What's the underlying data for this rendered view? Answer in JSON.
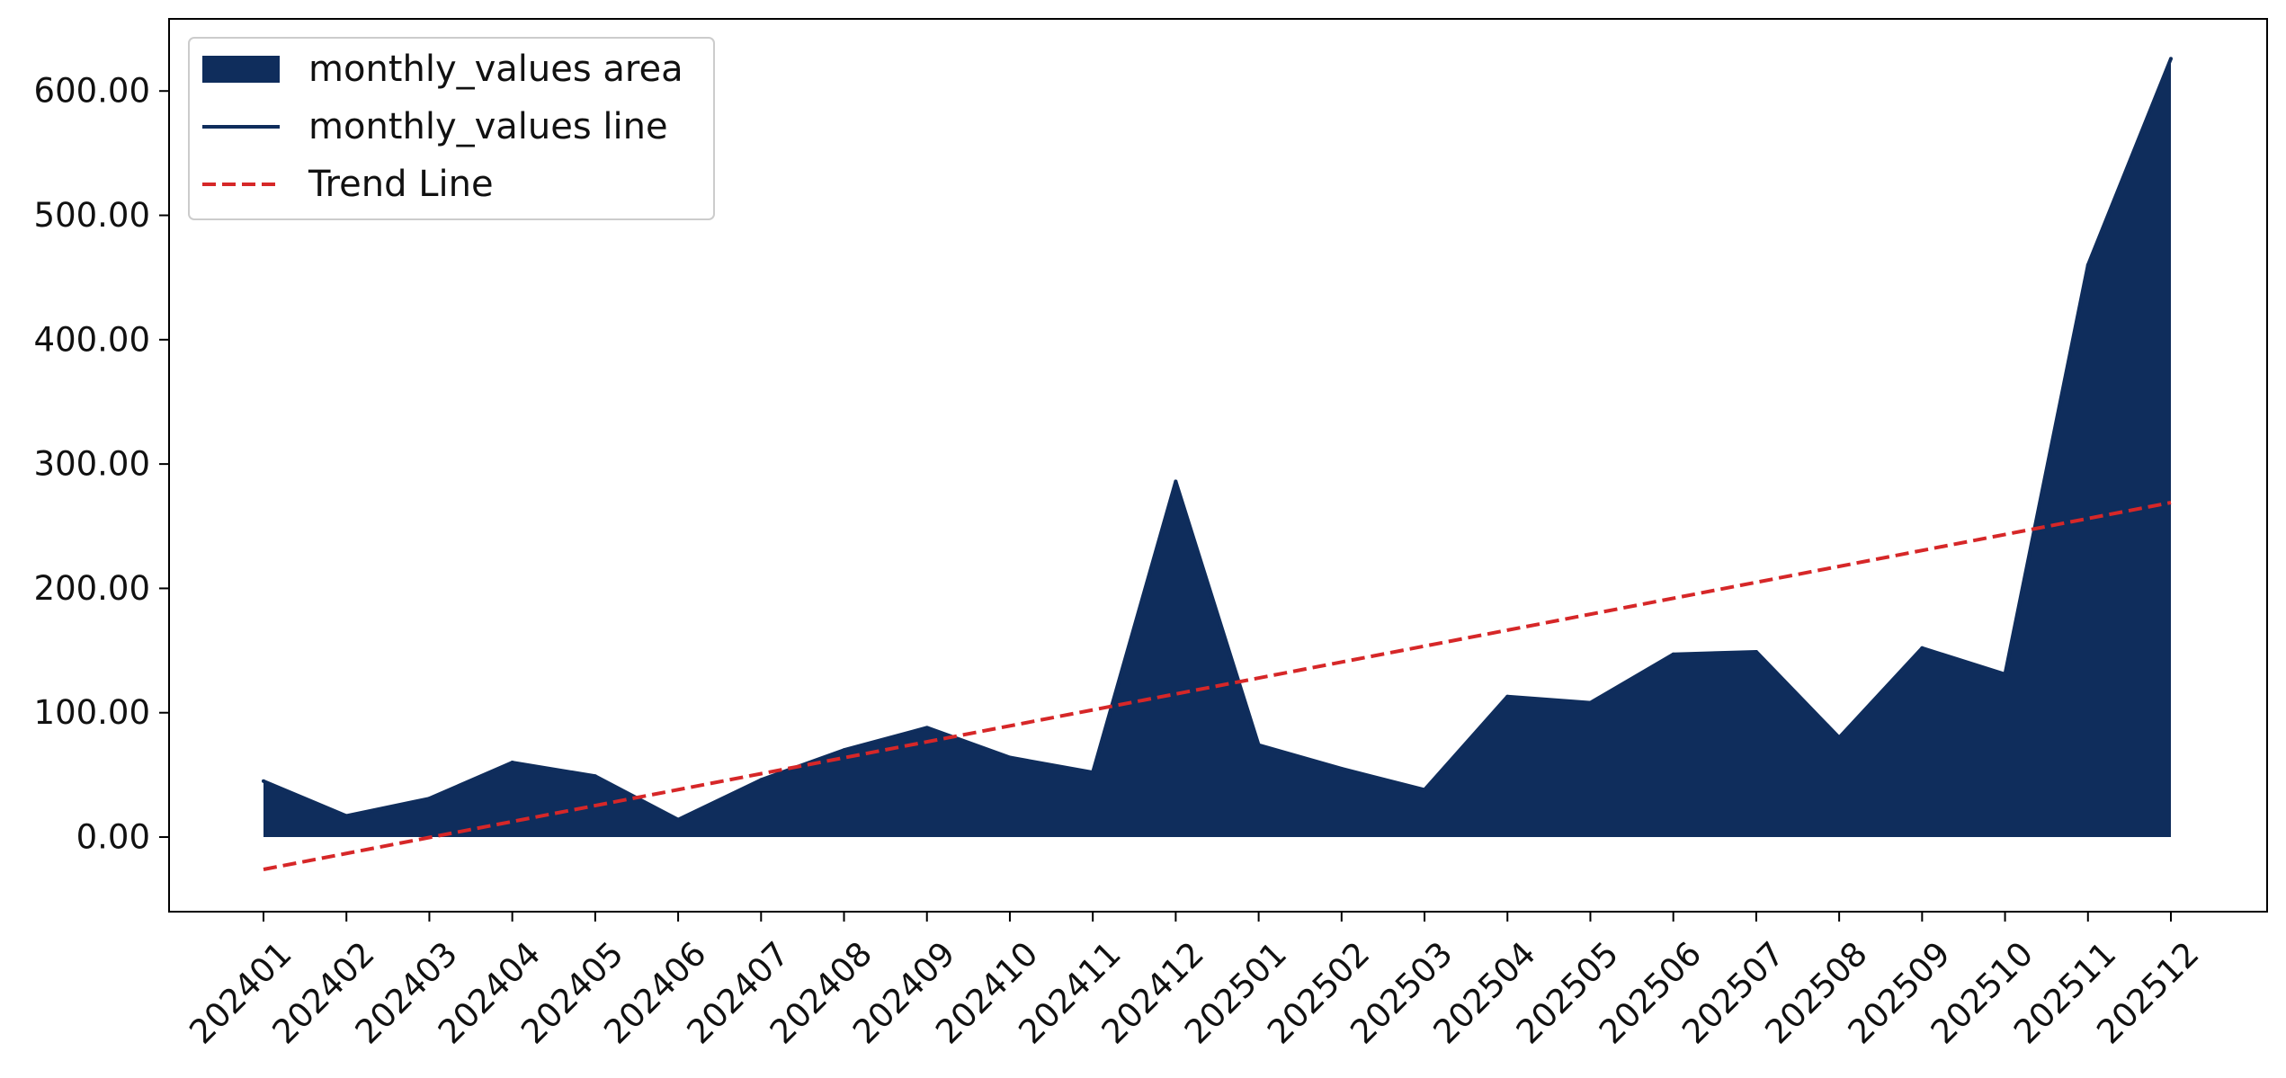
{
  "colors": {
    "area": "#0f2d5c",
    "line": "#0f2d5c",
    "trend": "#d62728",
    "axis": "#000000"
  },
  "legend": {
    "placement": "top-left",
    "items": [
      {
        "label": "monthly_values area",
        "kind": "area"
      },
      {
        "label": "monthly_values line",
        "kind": "line"
      },
      {
        "label": "Trend Line",
        "kind": "trend"
      }
    ]
  },
  "chart_data": {
    "type": "area",
    "title": "",
    "xlabel": "",
    "ylabel": "",
    "grid": false,
    "categories": [
      "202401",
      "202402",
      "202403",
      "202404",
      "202405",
      "202406",
      "202407",
      "202408",
      "202409",
      "202410",
      "202411",
      "202412",
      "202501",
      "202502",
      "202503",
      "202504",
      "202505",
      "202506",
      "202507",
      "202508",
      "202509",
      "202510",
      "202511",
      "202512"
    ],
    "series": [
      {
        "name": "monthly_values area",
        "type": "area",
        "values": [
          45,
          17,
          31,
          60,
          49,
          14,
          46,
          70,
          88,
          64,
          52,
          286,
          74,
          55,
          38,
          113,
          108,
          147,
          149,
          80,
          152,
          131,
          460,
          626
        ]
      },
      {
        "name": "monthly_values line",
        "type": "line",
        "values": [
          45,
          17,
          31,
          60,
          49,
          14,
          46,
          70,
          88,
          64,
          52,
          286,
          74,
          55,
          38,
          113,
          108,
          147,
          149,
          80,
          152,
          131,
          460,
          626
        ]
      },
      {
        "name": "Trend Line",
        "type": "line",
        "style": "dashed",
        "start": -26,
        "end": 269
      }
    ],
    "ylim": [
      -60,
      658
    ],
    "yticks": [
      0,
      100,
      200,
      300,
      400,
      500,
      600
    ],
    "ytick_labels": [
      "0.00",
      "100.00",
      "200.00",
      "300.00",
      "400.00",
      "500.00",
      "600.00"
    ]
  }
}
